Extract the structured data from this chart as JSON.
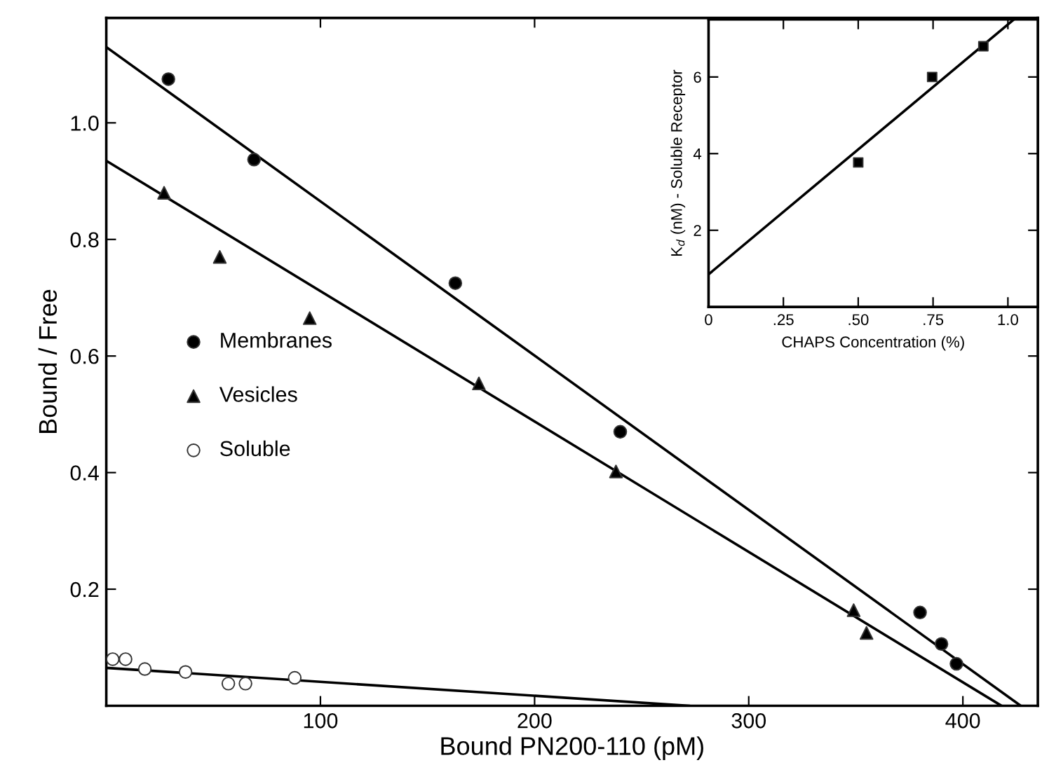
{
  "chart_data": [
    {
      "type": "scatter",
      "xlabel": "Bound PN200-110 (pM)",
      "ylabel": "Bound / Free",
      "xlim": [
        0,
        435
      ],
      "ylim": [
        0,
        1.18
      ],
      "xticks": [
        100,
        200,
        300,
        400
      ],
      "yticks": [
        0.2,
        0.4,
        0.6,
        0.8,
        {
          "value": 1,
          "label": "1.0"
        }
      ],
      "legend": "center left",
      "grid": false,
      "series": [
        {
          "name": "Membranes",
          "color": "#000000",
          "marker": "circle",
          "x": [
            29,
            69,
            163,
            240,
            380,
            390,
            397
          ],
          "values": [
            1.075,
            0.937,
            0.725,
            0.47,
            0.16,
            0.106,
            0.072
          ]
        },
        {
          "name": "Vesicles",
          "color": "#000000",
          "marker": "triangle",
          "x": [
            27,
            53,
            95,
            174,
            238,
            349,
            355
          ],
          "values": [
            0.88,
            0.77,
            0.665,
            0.553,
            0.402,
            0.164,
            0.125
          ]
        },
        {
          "name": "Soluble",
          "color": "#ffffff",
          "marker": "circle",
          "x": [
            3,
            9,
            18,
            37,
            57,
            65,
            88
          ],
          "values": [
            0.08,
            0.08,
            0.063,
            0.058,
            0.038,
            0.038,
            0.048
          ]
        },
        {
          "type": "line",
          "color": "#000000",
          "line_style": "solid",
          "x": [
            0,
            427
          ],
          "values": [
            1.13,
            0
          ]
        },
        {
          "type": "line",
          "color": "#000000",
          "line_style": "solid",
          "x": [
            0,
            418
          ],
          "values": [
            0.935,
            0
          ]
        },
        {
          "type": "line",
          "color": "#000000",
          "line_style": "solid",
          "x": [
            0,
            272
          ],
          "values": [
            0.065,
            0
          ]
        }
      ]
    },
    {
      "type": "scatter",
      "xlabel": "CHAPS Concentration (%)",
      "ylabel": "K$_{d}$ (nM) - Soluble Receptor",
      "xlim": [
        0,
        1.1
      ],
      "ylim": [
        0,
        7.5
      ],
      "xticks": [
        0,
        {
          "value": 0.25,
          "label": ".25"
        },
        {
          "value": 0.5,
          "label": ".50"
        },
        {
          "value": 0.75,
          "label": ".75"
        },
        {
          "value": 1,
          "label": "1.0"
        }
      ],
      "yticks": [
        2,
        4,
        6
      ],
      "grid": false,
      "series": [
        {
          "color": "#000000",
          "marker": "square",
          "x": [
            0.5,
            0.747,
            0.918
          ],
          "values": [
            3.77,
            6.0,
            6.8
          ]
        },
        {
          "type": "line",
          "color": "#000000",
          "line_style": "solid",
          "x": [
            0,
            1.02
          ],
          "values": [
            0.85,
            7.5
          ]
        }
      ]
    }
  ]
}
